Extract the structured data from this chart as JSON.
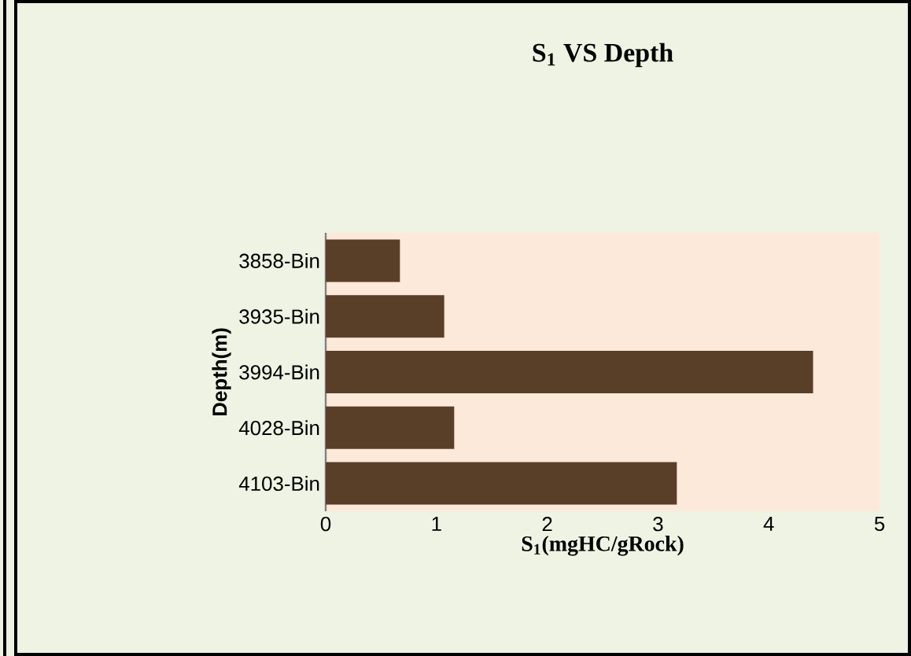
{
  "chart_data": {
    "type": "bar",
    "orientation": "horizontal",
    "title": "S$_{1}$ VS Depth",
    "xlabel": "S$_{1}$(mgHC/gRock)",
    "ylabel": "Depth(m)",
    "categories": [
      "3858-Bin",
      "3935-Bin",
      "3994-Bin",
      "4028-Bin",
      "4103-Bin"
    ],
    "values": [
      0.67,
      1.07,
      4.4,
      1.16,
      3.17
    ],
    "color": "#5a3f28",
    "xlim": [
      0,
      5
    ],
    "xticks": [
      0,
      1,
      2,
      3,
      4,
      5
    ],
    "grid": false
  }
}
